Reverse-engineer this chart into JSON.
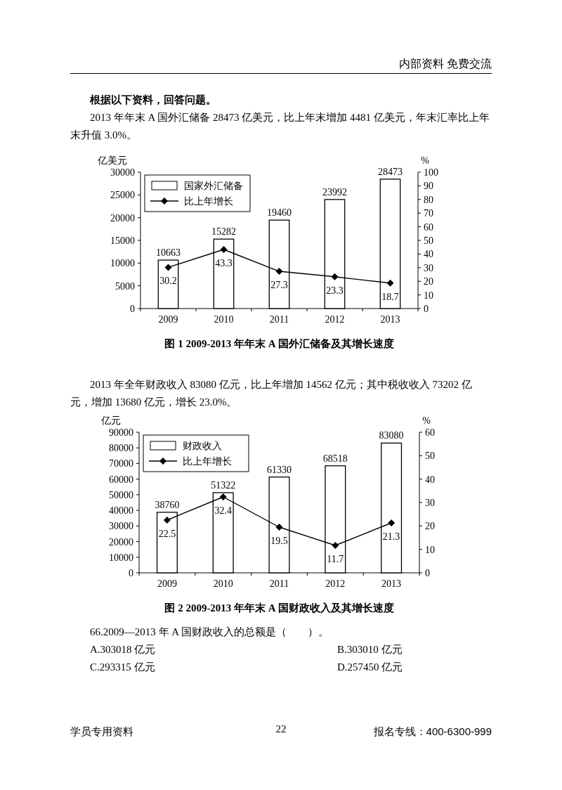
{
  "chart_data": [
    {
      "type": "bar",
      "title": "图 1 2009-2013 年年末 A 国外汇储备及其增长速度",
      "ylabel": "亿美元",
      "y2label": "%",
      "categories": [
        "2009",
        "2010",
        "2011",
        "2012",
        "2013"
      ],
      "series": [
        {
          "name": "国家外汇储备",
          "color": "#ffffff",
          "values": [
            10663,
            15282,
            19460,
            23992,
            28473
          ]
        },
        {
          "name": "比上年增长",
          "type": "line",
          "axis": "y2",
          "color": "#000000",
          "values": [
            30.2,
            43.3,
            27.3,
            23.3,
            18.7
          ]
        }
      ],
      "ylim": [
        0,
        30000
      ],
      "yticks": [
        0,
        5000,
        10000,
        15000,
        20000,
        25000,
        30000
      ],
      "y2lim": [
        0,
        100
      ],
      "y2ticks": [
        0,
        10,
        20,
        30,
        40,
        50,
        60,
        70,
        80,
        90,
        100
      ],
      "data_labels": true,
      "legend": "top left",
      "marker": "diamond",
      "annotations": [
        "内部资料 免费交流",
        "根据以下资料，回答问题。",
        "2013 年年末 A 国外汇储备 28473 亿美元，比上年末增加 4481 亿美元，年末汇率比上年末升值 3.0%。"
      ]
    },
    {
      "type": "bar",
      "title": "图 2 2009-2013 年年末 A 国财政收入及其增长速度",
      "ylabel": "亿元",
      "y2label": "%",
      "categories": [
        "2009",
        "2010",
        "2011",
        "2012",
        "2013"
      ],
      "series": [
        {
          "name": "财政收入",
          "color": "#ffffff",
          "values": [
            38760,
            51322,
            61330,
            68518,
            83080
          ]
        },
        {
          "name": "比上年增长",
          "type": "line",
          "axis": "y2",
          "color": "#000000",
          "values": [
            22.5,
            32.4,
            19.5,
            11.7,
            21.3
          ]
        }
      ],
      "ylim": [
        0,
        90000
      ],
      "yticks": [
        0,
        10000,
        20000,
        30000,
        40000,
        50000,
        60000,
        70000,
        80000,
        90000
      ],
      "y2lim": [
        0,
        60
      ],
      "y2ticks": [
        0,
        10,
        20,
        30,
        40,
        50,
        60
      ],
      "data_labels": true,
      "legend": "top left",
      "marker": "diamond",
      "annotations": [
        "2013 年全年财政收入 83080 亿元，比上年增加 14562 亿元；其中税收收入 73202 亿元，增加 13680 亿元，增长 23.0%。",
        "66.2009—2013 年 A 国财政收入的总额是（　　）。",
        "A.303018 亿元",
        "B.303010 亿元",
        "C.293315 亿元",
        "D.257450 亿元",
        "学员专用资料",
        "22",
        "报名专线：400-6300-999"
      ]
    }
  ]
}
